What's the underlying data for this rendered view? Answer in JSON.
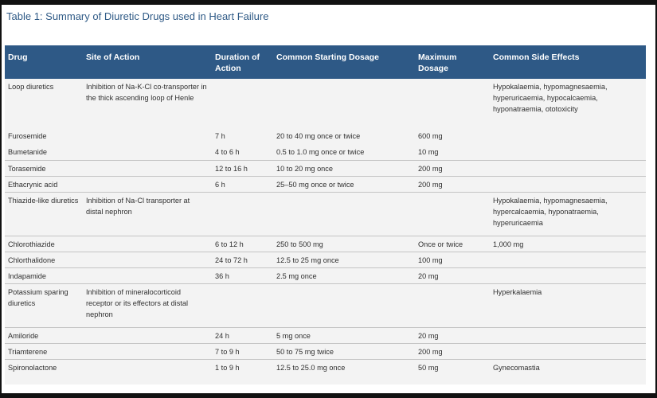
{
  "title": "Table 1: Summary of Diuretic Drugs used in Heart Failure",
  "headers": {
    "drug": "Drug",
    "site": "Site of Action",
    "duration": "Duration of Action",
    "starting": "Common Starting Dosage",
    "maximum": "Maximum Dosage",
    "side": "Common Side Effects"
  },
  "rows": [
    {
      "drug": "Loop diuretics",
      "site": "Inhibition of Na-K-Cl co-transporter in the thick ascending loop of Henle",
      "duration": "",
      "starting": "",
      "maximum": "",
      "side": "Hypokalaemia, hypomagnesaemia, hyperuricaemia, hypocalcaemia, hyponatraemia, ototoxicity"
    },
    {
      "drug": "Furosemide",
      "site": "",
      "duration": "7 h",
      "starting": "20 to 40 mg once or twice",
      "maximum": "600 mg",
      "side": ""
    },
    {
      "drug": "Bumetanide",
      "site": "",
      "duration": "4 to 6 h",
      "starting": "0.5 to 1.0 mg once or twice",
      "maximum": "10 mg",
      "side": ""
    },
    {
      "drug": "Torasemide",
      "site": "",
      "duration": "12 to 16 h",
      "starting": "10 to 20 mg once",
      "maximum": "200 mg",
      "side": ""
    },
    {
      "drug": "Ethacrynic acid",
      "site": "",
      "duration": "6 h",
      "starting": "25–50 mg once or twice",
      "maximum": "200 mg",
      "side": ""
    },
    {
      "drug": "Thiazide-like diuretics",
      "site": "Inhibition of Na-Cl transporter at distal nephron",
      "duration": "",
      "starting": "",
      "maximum": "",
      "side": "Hypokalaemia, hypomagnesaemia, hypercalcaemia, hyponatraemia, hyperuricaemia"
    },
    {
      "drug": "Chlorothiazide",
      "site": "",
      "duration": "6 to 12 h",
      "starting": "250 to 500 mg",
      "maximum": "Once or twice",
      "side": "1,000 mg"
    },
    {
      "drug": "Chlorthalidone",
      "site": "",
      "duration": "24 to 72 h",
      "starting": "12.5 to 25 mg once",
      "maximum": "100 mg",
      "side": ""
    },
    {
      "drug": "Indapamide",
      "site": "",
      "duration": "36 h",
      "starting": "2.5 mg once",
      "maximum": "20 mg",
      "side": ""
    },
    {
      "drug": "Potassium sparing diuretics",
      "site": "Inhibition of mineralocorticoid receptor or its effectors at distal nephron",
      "duration": "",
      "starting": "",
      "maximum": "",
      "side": "Hyperkalaemia"
    },
    {
      "drug": "Amiloride",
      "site": "",
      "duration": "24 h",
      "starting": "5 mg once",
      "maximum": "20 mg",
      "side": ""
    },
    {
      "drug": "Triamterene",
      "site": "",
      "duration": "7 to 9 h",
      "starting": "50 to 75 mg twice",
      "maximum": "200 mg",
      "side": ""
    },
    {
      "drug": "Spironolactone",
      "site": "",
      "duration": "1 to 9 h",
      "starting": "12.5 to 25.0 mg once",
      "maximum": "50 mg",
      "side": "Gynecomastia"
    }
  ]
}
